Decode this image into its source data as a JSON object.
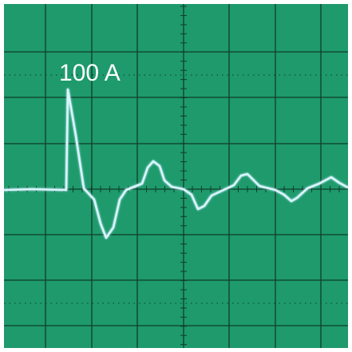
{
  "annotation": "100 A"
}
